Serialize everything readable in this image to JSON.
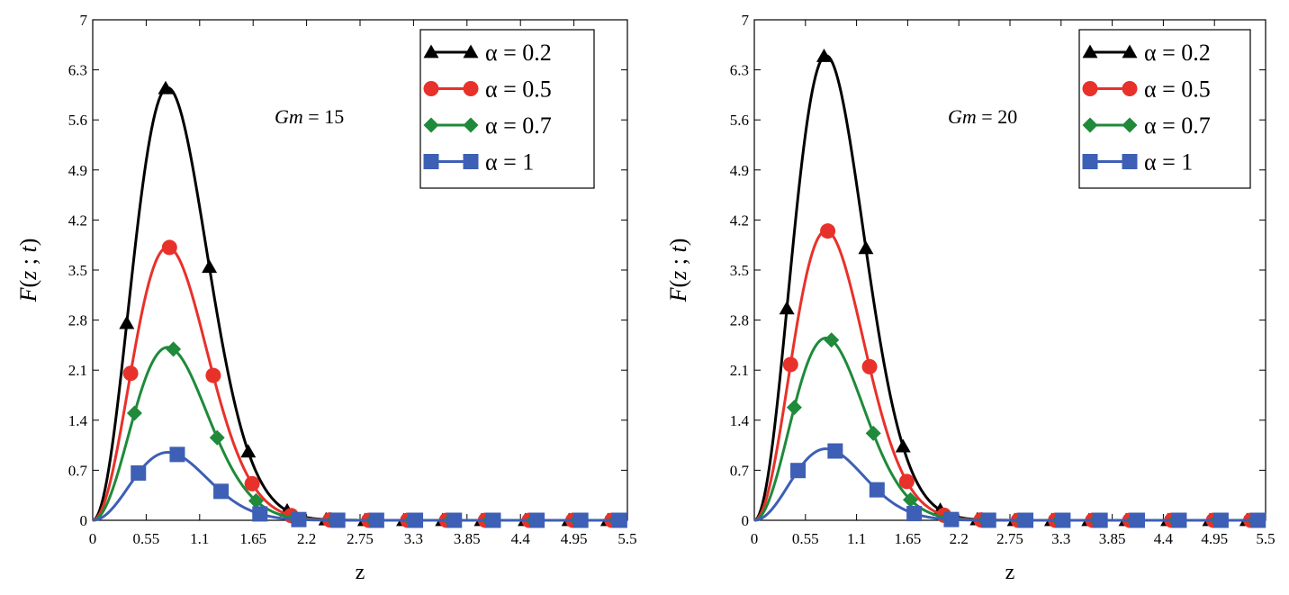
{
  "chart_data": [
    {
      "type": "line",
      "title": "",
      "annotation": {
        "label": "Gm",
        "value": "= 15"
      },
      "xlabel": "z",
      "ylabel": {
        "name": "F",
        "open": "(",
        "var1": "z",
        "sep": " ; ",
        "var2": "t",
        "close": ")"
      },
      "xlim": [
        0,
        5.5
      ],
      "ylim": [
        0,
        7
      ],
      "xticks": [
        "0",
        "0.55",
        "1.1",
        "1.65",
        "2.2",
        "2.75",
        "3.3",
        "3.85",
        "4.4",
        "4.95",
        "5.5"
      ],
      "yticks": [
        "0",
        "0.7",
        "1.4",
        "2.1",
        "2.8",
        "3.5",
        "4.2",
        "4.9",
        "5.6",
        "6.3",
        "7"
      ],
      "grid": false,
      "legend_position": "top-right",
      "series": [
        {
          "name": "α = 0.2",
          "color": "#000000",
          "marker": "triangle",
          "peak": 6.05
        },
        {
          "name": "α = 0.5",
          "color": "#e8312a",
          "marker": "circle",
          "peak": 3.82
        },
        {
          "name": "α = 0.7",
          "color": "#1e8a3a",
          "marker": "diamond",
          "peak": 2.42
        },
        {
          "name": "α = 1",
          "color": "#3d5fb5",
          "marker": "square",
          "peak": 0.95
        }
      ]
    },
    {
      "type": "line",
      "title": "",
      "annotation": {
        "label": "Gm",
        "value": "= 20"
      },
      "xlabel": "z",
      "ylabel": {
        "name": "F",
        "open": "(",
        "var1": "z",
        "sep": " ; ",
        "var2": "t",
        "close": ")"
      },
      "xlim": [
        0,
        5.5
      ],
      "ylim": [
        0,
        7
      ],
      "xticks": [
        "0",
        "0.55",
        "1.1",
        "1.65",
        "2.2",
        "2.75",
        "3.3",
        "3.85",
        "4.4",
        "4.95",
        "5.5"
      ],
      "yticks": [
        "0",
        "0.7",
        "1.4",
        "2.1",
        "2.8",
        "3.5",
        "4.2",
        "4.9",
        "5.6",
        "6.3",
        "7"
      ],
      "grid": false,
      "legend_position": "top-right",
      "series": [
        {
          "name": "α = 0.2",
          "color": "#000000",
          "marker": "triangle",
          "peak": 6.5
        },
        {
          "name": "α = 0.5",
          "color": "#e8312a",
          "marker": "circle",
          "peak": 4.05
        },
        {
          "name": "α = 0.7",
          "color": "#1e8a3a",
          "marker": "diamond",
          "peak": 2.55
        },
        {
          "name": "α = 1",
          "color": "#3d5fb5",
          "marker": "square",
          "peak": 1.0
        }
      ]
    }
  ]
}
